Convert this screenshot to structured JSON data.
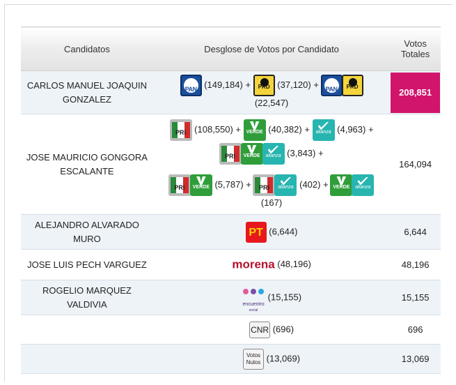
{
  "header": {
    "col_candidatos": "Candidatos",
    "col_desglose": "Desglose de Votos por Candidato",
    "col_votos_l1": "Votos",
    "col_votos_l2": "Totales"
  },
  "logos": {
    "pan": "PAN",
    "prd": "PRD",
    "pri": "PRI",
    "verde": "VERDE",
    "alianza": "alianza",
    "pt": "PT",
    "morena": "morena",
    "encuentro_l1": "encuentro",
    "encuentro_l2": "social",
    "cnr": "CNR",
    "nulos_l1": "Votos",
    "nulos_l2": "Nulos"
  },
  "rows": [
    {
      "candidate": "CARLOS MANUEL JOAQUIN GONZALEZ",
      "parts": [
        "(149,184) +",
        "(37,120) +",
        "(22,547)"
      ],
      "total": "208,851",
      "winner": true
    },
    {
      "candidate": "JOSE MAURICIO GONGORA ESCALANTE",
      "parts": [
        "(108,550) +",
        "(40,382) +",
        "(4,963) +",
        "(3,843) +",
        "(5,787) +",
        "(402) +",
        "(167)"
      ],
      "total": "164,094",
      "winner": false
    },
    {
      "candidate": "ALEJANDRO ALVARADO MURO",
      "parts": [
        "(6,644)"
      ],
      "total": "6,644",
      "winner": false
    },
    {
      "candidate": "JOSE LUIS PECH VARGUEZ",
      "parts": [
        "(48,196)"
      ],
      "total": "48,196",
      "winner": false
    },
    {
      "candidate": "ROGELIO MARQUEZ VALDIVIA",
      "parts": [
        "(15,155)"
      ],
      "total": "15,155",
      "winner": false
    },
    {
      "candidate": "",
      "parts": [
        "(696)"
      ],
      "total": "696",
      "winner": false
    },
    {
      "candidate": "",
      "parts": [
        "(13,069)"
      ],
      "total": "13,069",
      "winner": false
    }
  ],
  "colors": {
    "winner_bg": "#d1146c",
    "pan": "#1b4f9c",
    "prd": "#f4d43c",
    "verde": "#2f9e3a",
    "alianza": "#27b5b0",
    "pt": "#e8171d",
    "morena": "#b5122d"
  }
}
